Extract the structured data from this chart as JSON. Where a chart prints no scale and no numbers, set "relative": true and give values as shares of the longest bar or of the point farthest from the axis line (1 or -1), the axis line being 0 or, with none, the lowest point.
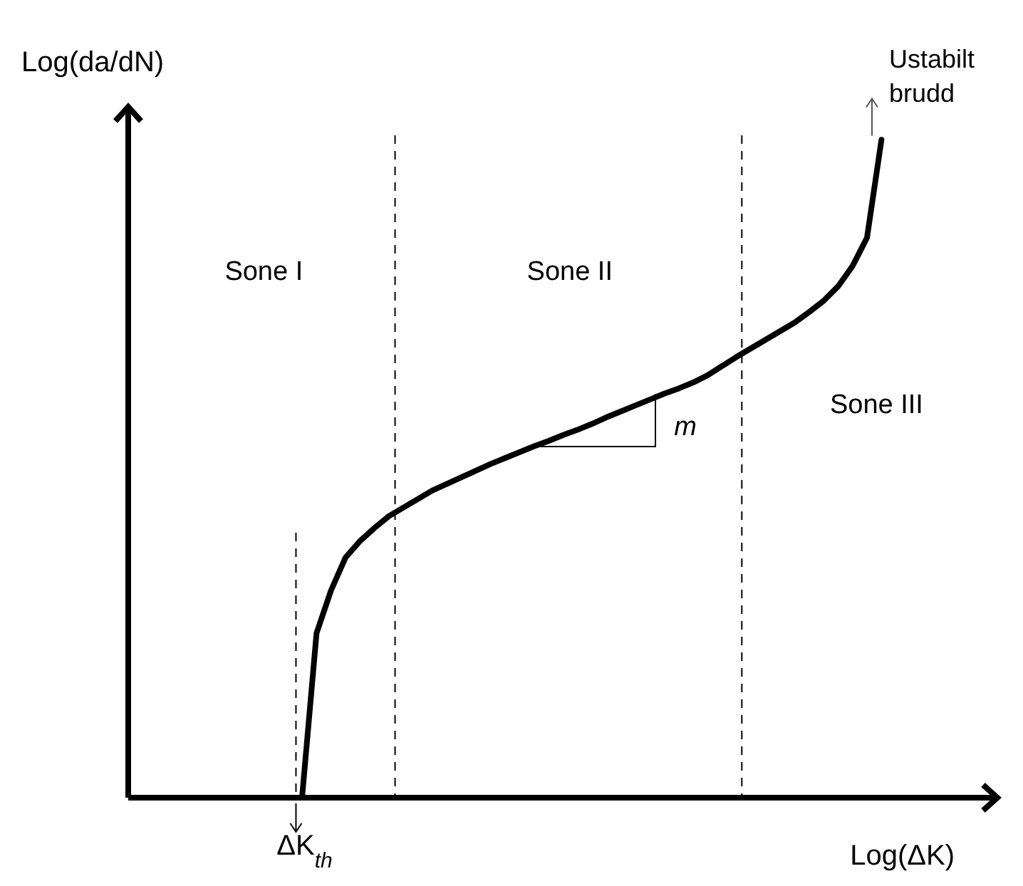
{
  "chart_data": {
    "type": "line",
    "xlabel": "Log(ΔK)",
    "ylabel": "Log(da/dN)",
    "relative": true,
    "line_style": "solid",
    "categories": [
      null,
      null,
      null,
      null,
      null,
      null,
      null,
      null,
      null,
      null,
      null,
      null,
      null,
      null,
      null,
      null,
      null,
      null,
      null,
      null,
      null,
      null,
      null,
      null,
      null,
      null,
      null,
      null,
      null,
      null,
      null,
      null,
      null,
      null,
      null,
      null,
      null,
      null,
      null,
      null,
      null,
      null,
      null,
      null,
      null,
      null,
      null,
      null,
      null,
      null,
      null,
      null,
      null,
      null,
      null,
      null,
      null,
      null,
      null,
      null,
      null
    ],
    "series": [
      {
        "color": "#000000",
        "values": [
          null,
          null,
          null,
          null,
          null,
          null,
          null,
          null,
          null,
          null,
          null,
          null,
          0,
          0.25,
          0.315,
          0.365,
          0.39,
          0.41,
          0.428,
          0.441,
          0.454,
          0.467,
          0.477,
          0.487,
          0.497,
          0.507,
          0.516,
          0.525,
          0.534,
          0.542,
          0.551,
          0.559,
          0.568,
          0.578,
          0.587,
          0.596,
          0.605,
          0.614,
          0.622,
          0.631,
          0.642,
          0.656,
          0.67,
          0.683,
          0.696,
          0.709,
          0.722,
          0.738,
          0.755,
          0.777,
          0.808,
          0.851,
          1.0,
          null,
          null,
          null,
          null,
          null,
          null,
          null,
          null
        ]
      }
    ],
    "annotations": [
      "Sone I",
      "Sone II",
      "Sone III",
      "m",
      "Ustabilt brudd",
      "ΔK$_{th}$"
    ]
  }
}
